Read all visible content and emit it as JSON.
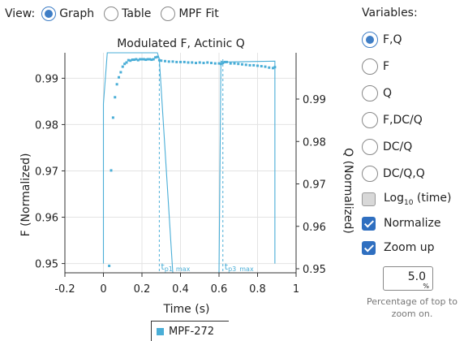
{
  "view": {
    "label": "View:",
    "options": [
      {
        "label": "Graph",
        "checked": true
      },
      {
        "label": "Table",
        "checked": false
      },
      {
        "label": "MPF Fit",
        "checked": false
      }
    ]
  },
  "panel": {
    "title": "Variables:",
    "variables": [
      {
        "label": "F,Q",
        "checked": true
      },
      {
        "label": "F",
        "checked": false
      },
      {
        "label": "Q",
        "checked": false
      },
      {
        "label": "F,DC/Q",
        "checked": false
      },
      {
        "label": "DC/Q",
        "checked": false
      },
      {
        "label": "DC/Q,Q",
        "checked": false
      }
    ],
    "log_label": "Log",
    "log_sub": "10",
    "log_suffix": " (time)",
    "log_checked": false,
    "normalize_label": "Normalize",
    "normalize_checked": true,
    "zoom_label": "Zoom up",
    "zoom_checked": true,
    "zoom_value": "5.0",
    "zoom_unit": "%",
    "zoom_help": "Percentage of top to zoom on."
  },
  "legend": {
    "label": "MPF-272"
  },
  "colors": {
    "series": "#4aaed7",
    "accent": "#3f7ec6"
  },
  "chart_data": {
    "type": "scatter",
    "title": "Modulated F, Actinic Q",
    "xlabel": "Time (s)",
    "ylabel": "F (Normalized)",
    "y2label": "Q (Normalized)",
    "xlim": [
      -0.2,
      1.0
    ],
    "ylim": [
      0.948,
      0.9955
    ],
    "y2lim": [
      0.95,
      1.0
    ],
    "xticks": [
      "-0.2",
      "0",
      "0.2",
      "0.4",
      "0.6",
      "0.8",
      "1"
    ],
    "yticks": [
      "0.95",
      "0.96",
      "0.97",
      "0.98",
      "0.99"
    ],
    "y2ticks": [
      "0.95",
      "0.96",
      "0.97",
      "0.98",
      "0.99"
    ],
    "markers": [
      {
        "label": "t",
        "sub": "p1_max",
        "x": 0.29
      },
      {
        "label": "t",
        "sub": "p3_max",
        "x": 0.62
      }
    ],
    "series": [
      {
        "name": "MPF-272",
        "x": [
          0.03,
          0.04,
          0.05,
          0.06,
          0.07,
          0.08,
          0.09,
          0.1,
          0.11,
          0.12,
          0.13,
          0.14,
          0.15,
          0.16,
          0.17,
          0.18,
          0.19,
          0.2,
          0.21,
          0.22,
          0.23,
          0.24,
          0.25,
          0.26,
          0.27,
          0.28,
          0.29,
          0.3,
          0.32,
          0.34,
          0.36,
          0.38,
          0.4,
          0.42,
          0.44,
          0.46,
          0.48,
          0.5,
          0.52,
          0.54,
          0.56,
          0.58,
          0.6,
          0.61,
          0.62,
          0.63,
          0.64,
          0.66,
          0.68,
          0.7,
          0.72,
          0.74,
          0.76,
          0.78,
          0.8,
          0.82,
          0.84,
          0.86,
          0.88,
          0.89
        ],
        "y": [
          0.9495,
          0.9701,
          0.9815,
          0.9859,
          0.9887,
          0.9902,
          0.9913,
          0.9925,
          0.9931,
          0.9934,
          0.9939,
          0.9938,
          0.994,
          0.994,
          0.9941,
          0.9939,
          0.9941,
          0.9941,
          0.9941,
          0.994,
          0.9941,
          0.9941,
          0.994,
          0.9941,
          0.9945,
          0.9946,
          0.9939,
          0.9938,
          0.9937,
          0.9936,
          0.9936,
          0.9935,
          0.9935,
          0.9935,
          0.9934,
          0.9934,
          0.9933,
          0.9934,
          0.9933,
          0.9934,
          0.9933,
          0.9932,
          0.9932,
          0.9931,
          0.9933,
          0.9935,
          0.9935,
          0.9932,
          0.9932,
          0.9931,
          0.993,
          0.9929,
          0.9928,
          0.9928,
          0.9927,
          0.9926,
          0.9925,
          0.9923,
          0.9922,
          0.9924
        ]
      }
    ],
    "q_trace": {
      "x": [
        0.0,
        0.0,
        0.02,
        0.1,
        0.2,
        0.28,
        0.29,
        0.36,
        0.6,
        0.61,
        0.61,
        0.62,
        0.89,
        0.89,
        0.89
      ],
      "y": [
        0.95,
        0.9845,
        0.9955,
        0.9955,
        0.9955,
        0.9955,
        0.9942,
        0.948,
        0.948,
        0.9937,
        0.9937,
        0.9935,
        0.9937,
        0.9937,
        0.95
      ]
    }
  }
}
